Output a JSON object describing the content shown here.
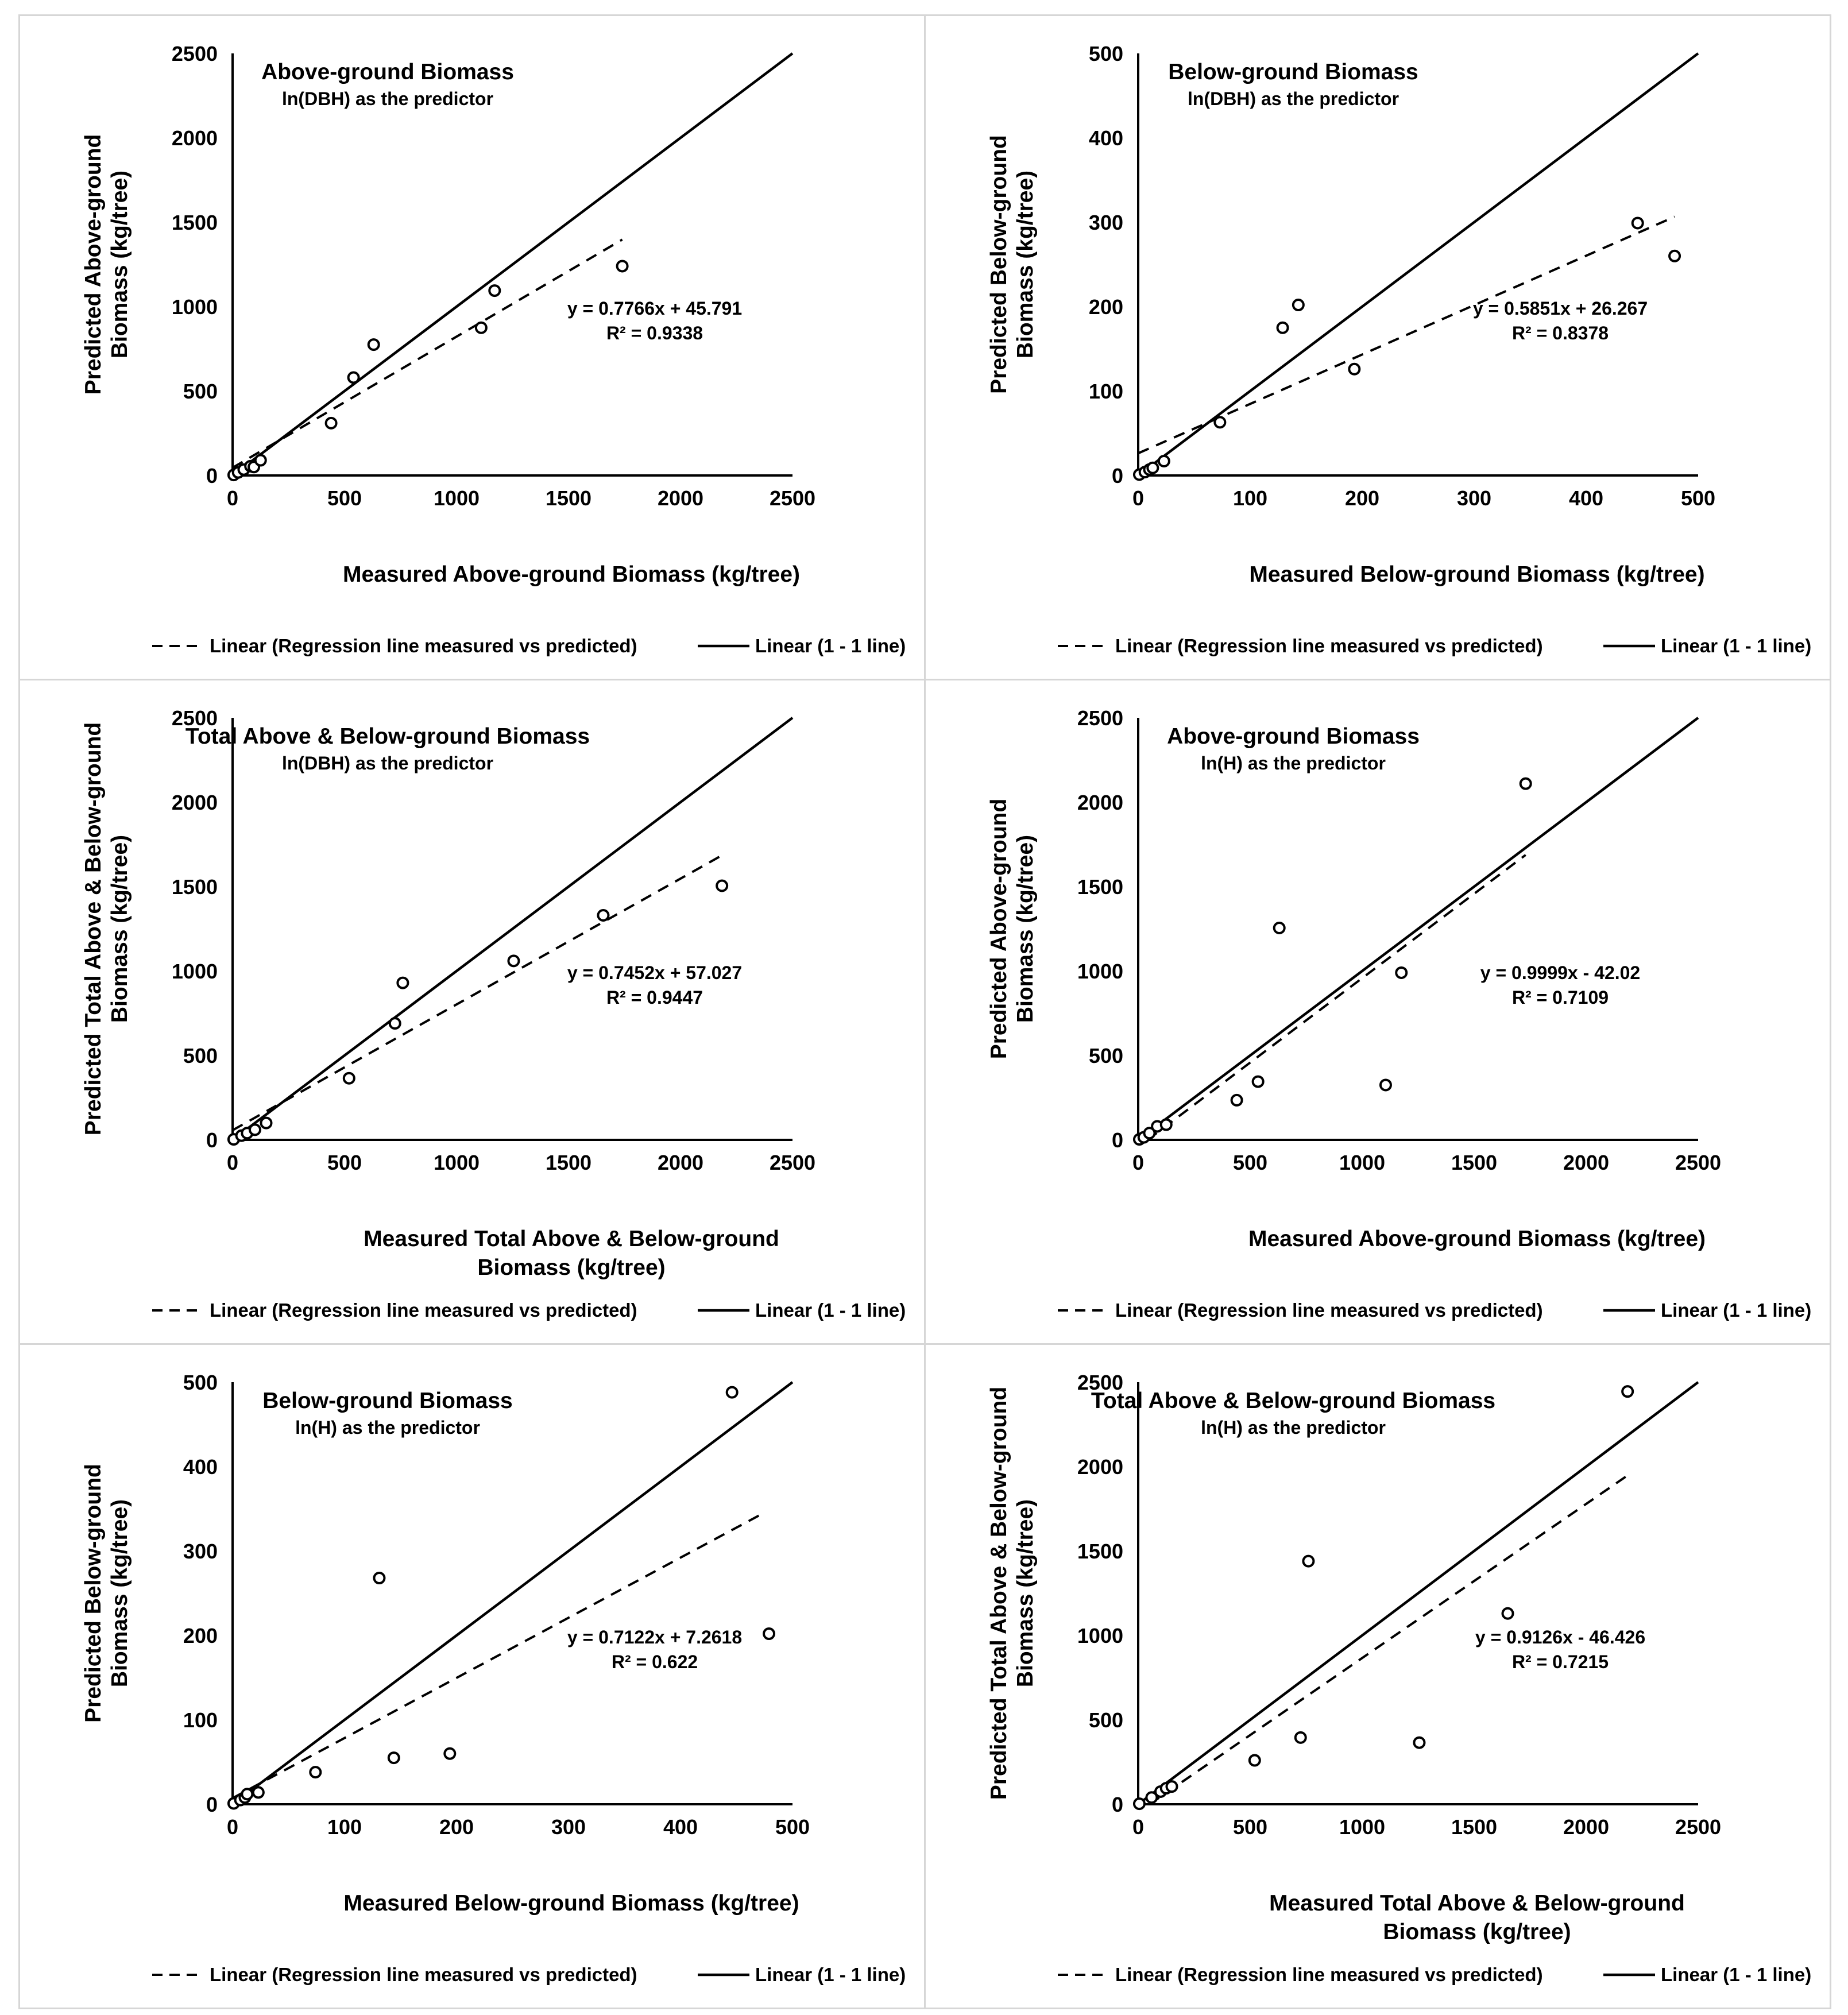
{
  "legend": {
    "regression_label": "Linear (Regression line measured vs predicted)",
    "oneone_label": "Linear (1 - 1 line)"
  },
  "chart_data": [
    {
      "type": "scatter",
      "title": "Above-ground Biomass",
      "subtitle": "ln(DBH) as the predictor",
      "xlabel": [
        "Measured Above-ground Biomass  (kg/tree)"
      ],
      "ylabel": [
        "Predicted Above-ground",
        "Biomass  (kg/tree)"
      ],
      "xlim": [
        0,
        2500
      ],
      "ylim": [
        0,
        2500
      ],
      "xticks": [
        0,
        500,
        1000,
        1500,
        2000,
        2500
      ],
      "yticks": [
        0,
        500,
        1000,
        1500,
        2000,
        2500
      ],
      "points": [
        [
          5,
          3
        ],
        [
          25,
          18
        ],
        [
          50,
          35
        ],
        [
          80,
          55
        ],
        [
          95,
          50
        ],
        [
          125,
          90
        ],
        [
          440,
          310
        ],
        [
          540,
          580
        ],
        [
          630,
          775
        ],
        [
          1110,
          875
        ],
        [
          1170,
          1095
        ],
        [
          1740,
          1240
        ]
      ],
      "regression": {
        "slope": 0.7766,
        "intercept": 45.791,
        "x_range": [
          0,
          1740
        ]
      },
      "equation": "y = 0.7766x + 45.791",
      "r2": "R² = 0.9338"
    },
    {
      "type": "scatter",
      "title": "Below-ground Biomass",
      "subtitle": "ln(DBH) as the predictor",
      "xlabel": [
        "Measured Below-ground Biomass  (kg/tree)"
      ],
      "ylabel": [
        "Predicted Below-ground",
        "Biomass  (kg/tree)"
      ],
      "xlim": [
        0,
        500
      ],
      "ylim": [
        0,
        500
      ],
      "xticks": [
        0,
        100,
        200,
        300,
        400,
        500
      ],
      "yticks": [
        0,
        100,
        200,
        300,
        400,
        500
      ],
      "points": [
        [
          1,
          1
        ],
        [
          6,
          4
        ],
        [
          10,
          7
        ],
        [
          13,
          9
        ],
        [
          23,
          17
        ],
        [
          73,
          63
        ],
        [
          129,
          175
        ],
        [
          143,
          202
        ],
        [
          193,
          126
        ],
        [
          446,
          299
        ],
        [
          479,
          260
        ]
      ],
      "regression": {
        "slope": 0.5851,
        "intercept": 26.267,
        "x_range": [
          0,
          479
        ]
      },
      "equation": "y = 0.5851x + 26.267",
      "r2": "R² = 0.8378"
    },
    {
      "type": "scatter",
      "title": "Total Above & Below-ground Biomass",
      "subtitle": "ln(DBH) as the predictor",
      "xlabel": [
        "Measured Total Above & Below-ground",
        "Biomass  (kg/tree)"
      ],
      "ylabel": [
        "Predicted Total Above & Below-ground",
        "Biomass  (kg/tree)"
      ],
      "xlim": [
        0,
        2500
      ],
      "ylim": [
        0,
        2500
      ],
      "xticks": [
        0,
        500,
        1000,
        1500,
        2000,
        2500
      ],
      "yticks": [
        0,
        500,
        1000,
        1500,
        2000,
        2500
      ],
      "points": [
        [
          5,
          3
        ],
        [
          40,
          25
        ],
        [
          65,
          40
        ],
        [
          100,
          60
        ],
        [
          150,
          100
        ],
        [
          520,
          365
        ],
        [
          725,
          690
        ],
        [
          760,
          930
        ],
        [
          1255,
          1060
        ],
        [
          1655,
          1330
        ],
        [
          2185,
          1505
        ]
      ],
      "regression": {
        "slope": 0.7452,
        "intercept": 57.027,
        "x_range": [
          0,
          2185
        ]
      },
      "equation": "y = 0.7452x + 57.027",
      "r2": "R² = 0.9447"
    },
    {
      "type": "scatter",
      "title": "Above-ground Biomass",
      "subtitle": "ln(H) as the predictor",
      "xlabel": [
        "Measured Above-ground Biomass  (kg/tree)"
      ],
      "ylabel": [
        "Predicted Above-ground",
        "Biomass  (kg/tree)"
      ],
      "xlim": [
        0,
        2500
      ],
      "ylim": [
        0,
        2500
      ],
      "xticks": [
        0,
        500,
        1000,
        1500,
        2000,
        2500
      ],
      "yticks": [
        0,
        500,
        1000,
        1500,
        2000,
        2500
      ],
      "points": [
        [
          5,
          3
        ],
        [
          25,
          15
        ],
        [
          50,
          40
        ],
        [
          85,
          80
        ],
        [
          125,
          90
        ],
        [
          440,
          235
        ],
        [
          535,
          345
        ],
        [
          630,
          1255
        ],
        [
          1105,
          325
        ],
        [
          1175,
          990
        ],
        [
          1730,
          2110
        ]
      ],
      "regression": {
        "slope": 0.9999,
        "intercept": -42.02,
        "x_range": [
          42,
          1730
        ]
      },
      "equation": "y = 0.9999x - 42.02",
      "r2": "R² = 0.7109"
    },
    {
      "type": "scatter",
      "title": "Below-ground Biomass",
      "subtitle": "ln(H) as the predictor",
      "xlabel": [
        "Measured Below-ground Biomass  (kg/tree)"
      ],
      "ylabel": [
        "Predicted Below-ground",
        "Biomass  (kg/tree)"
      ],
      "xlim": [
        0,
        500
      ],
      "ylim": [
        0,
        500
      ],
      "xticks": [
        0,
        100,
        200,
        300,
        400,
        500
      ],
      "yticks": [
        0,
        100,
        200,
        300,
        400,
        500
      ],
      "points": [
        [
          1,
          1
        ],
        [
          7,
          5
        ],
        [
          11,
          8
        ],
        [
          13,
          12
        ],
        [
          23,
          14
        ],
        [
          74,
          38
        ],
        [
          131,
          268
        ],
        [
          144,
          55
        ],
        [
          194,
          60
        ],
        [
          446,
          488
        ],
        [
          479,
          202
        ]
      ],
      "regression": {
        "slope": 0.7122,
        "intercept": 7.2618,
        "x_range": [
          0,
          472
        ]
      },
      "equation": "y = 0.7122x + 7.2618",
      "r2": "R² = 0.622"
    },
    {
      "type": "scatter",
      "title": "Total Above & Below-ground Biomass",
      "subtitle": "ln(H) as the predictor",
      "xlabel": [
        "Measured Total Above & Below-ground",
        "Biomass  (kg/tree)"
      ],
      "ylabel": [
        "Predicted Total Above & Below-ground",
        "Biomass  (kg/tree)"
      ],
      "xlim": [
        0,
        2500
      ],
      "ylim": [
        0,
        2500
      ],
      "xticks": [
        0,
        500,
        1000,
        1500,
        2000,
        2500
      ],
      "yticks": [
        0,
        500,
        1000,
        1500,
        2000,
        2500
      ],
      "points": [
        [
          5,
          3
        ],
        [
          60,
          40
        ],
        [
          100,
          75
        ],
        [
          125,
          95
        ],
        [
          150,
          105
        ],
        [
          520,
          260
        ],
        [
          725,
          395
        ],
        [
          760,
          1440
        ],
        [
          1255,
          365
        ],
        [
          1650,
          1130
        ],
        [
          2185,
          2445
        ]
      ],
      "regression": {
        "slope": 0.9126,
        "intercept": -46.426,
        "x_range": [
          51,
          2185
        ]
      },
      "equation": "y = 0.9126x - 46.426",
      "r2": "R² = 0.7215"
    }
  ]
}
